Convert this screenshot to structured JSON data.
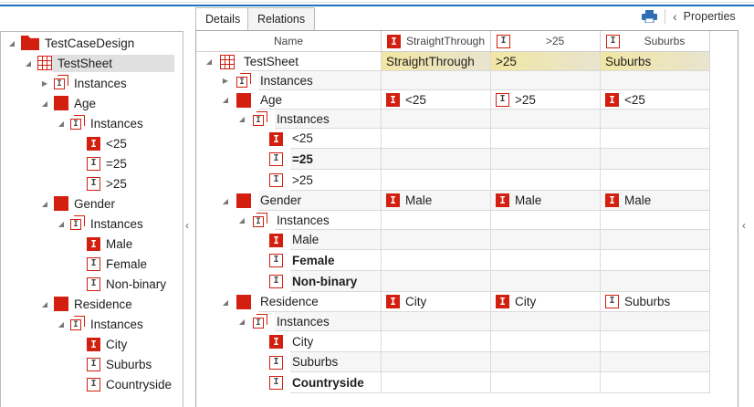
{
  "colors": {
    "accent": "#1e73be",
    "icon_red": "#d21f0f",
    "highlight": "#f3e6a3"
  },
  "tabs": [
    {
      "label": "Details",
      "active": true
    },
    {
      "label": "Relations",
      "active": false
    }
  ],
  "toolbar": {
    "print_icon": "printer-icon",
    "properties_label": "Properties"
  },
  "tree": [
    {
      "label": "TestCaseDesign",
      "icon": "folder",
      "level": 0,
      "exp": "open"
    },
    {
      "label": "TestSheet",
      "icon": "sheet",
      "level": 1,
      "exp": "open",
      "selected": true
    },
    {
      "label": "Instances",
      "icon": "inst",
      "level": 2,
      "exp": "closed"
    },
    {
      "label": "Age",
      "icon": "attr",
      "level": 2,
      "exp": "open"
    },
    {
      "label": "Instances",
      "icon": "inst",
      "level": 3,
      "exp": "open"
    },
    {
      "label": "<25",
      "icon": "fill",
      "level": 4
    },
    {
      "label": "=25",
      "icon": "out",
      "level": 4
    },
    {
      "label": ">25",
      "icon": "out",
      "level": 4
    },
    {
      "label": "Gender",
      "icon": "attr",
      "level": 2,
      "exp": "open"
    },
    {
      "label": "Instances",
      "icon": "inst",
      "level": 3,
      "exp": "open"
    },
    {
      "label": "Male",
      "icon": "fill",
      "level": 4
    },
    {
      "label": "Female",
      "icon": "out",
      "level": 4
    },
    {
      "label": "Non-binary",
      "icon": "out",
      "level": 4
    },
    {
      "label": "Residence",
      "icon": "attr",
      "level": 2,
      "exp": "open"
    },
    {
      "label": "Instances",
      "icon": "inst",
      "level": 3,
      "exp": "open"
    },
    {
      "label": "City",
      "icon": "fill",
      "level": 4
    },
    {
      "label": "Suburbs",
      "icon": "out",
      "level": 4
    },
    {
      "label": "Countryside",
      "icon": "out",
      "level": 4
    }
  ],
  "grid": {
    "name_header": "Name",
    "columns": [
      {
        "label": "StraightThrough",
        "icon": "fill"
      },
      {
        "label": ">25",
        "icon": "out"
      },
      {
        "label": "Suburbs",
        "icon": "out"
      }
    ],
    "rows": [
      {
        "label": "TestSheet",
        "icon": "sheet",
        "level": 0,
        "exp": "open",
        "cells": [
          {
            "text": "StraightThrough"
          },
          {
            "text": ">25"
          },
          {
            "text": "Suburbs"
          }
        ],
        "highlight": true
      },
      {
        "label": "Instances",
        "icon": "inst",
        "level": 1,
        "exp": "closed",
        "cells": []
      },
      {
        "label": "Age",
        "icon": "attr",
        "level": 1,
        "exp": "open",
        "cells": [
          {
            "text": "<25",
            "icon": "fill"
          },
          {
            "text": ">25",
            "icon": "out"
          },
          {
            "text": "<25",
            "icon": "fill"
          }
        ]
      },
      {
        "label": "Instances",
        "icon": "inst",
        "level": 2,
        "exp": "open",
        "cells": []
      },
      {
        "label": "<25",
        "icon": "fill",
        "level": 3,
        "cells": []
      },
      {
        "label": "=25",
        "icon": "out",
        "level": 3,
        "bold": true,
        "cells": []
      },
      {
        "label": ">25",
        "icon": "out",
        "level": 3,
        "cells": []
      },
      {
        "label": "Gender",
        "icon": "attr",
        "level": 1,
        "exp": "open",
        "cells": [
          {
            "text": "Male",
            "icon": "fill"
          },
          {
            "text": "Male",
            "icon": "fill"
          },
          {
            "text": "Male",
            "icon": "fill"
          }
        ]
      },
      {
        "label": "Instances",
        "icon": "inst",
        "level": 2,
        "exp": "open",
        "cells": []
      },
      {
        "label": "Male",
        "icon": "fill",
        "level": 3,
        "cells": []
      },
      {
        "label": "Female",
        "icon": "out",
        "level": 3,
        "bold": true,
        "cells": []
      },
      {
        "label": "Non-binary",
        "icon": "out",
        "level": 3,
        "bold": true,
        "cells": []
      },
      {
        "label": "Residence",
        "icon": "attr",
        "level": 1,
        "exp": "open",
        "cells": [
          {
            "text": "City",
            "icon": "fill"
          },
          {
            "text": "City",
            "icon": "fill"
          },
          {
            "text": "Suburbs",
            "icon": "out"
          }
        ]
      },
      {
        "label": "Instances",
        "icon": "inst",
        "level": 2,
        "exp": "open",
        "cells": []
      },
      {
        "label": "City",
        "icon": "fill",
        "level": 3,
        "cells": []
      },
      {
        "label": "Suburbs",
        "icon": "out",
        "level": 3,
        "cells": []
      },
      {
        "label": "Countryside",
        "icon": "out",
        "level": 3,
        "bold": true,
        "cells": []
      }
    ]
  }
}
